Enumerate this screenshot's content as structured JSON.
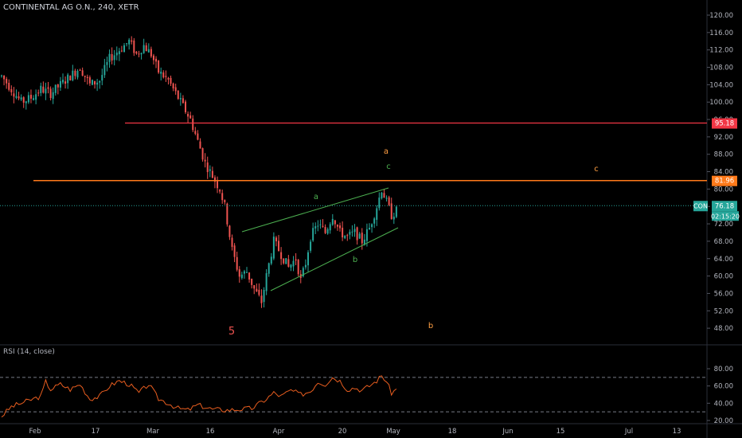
{
  "title": "CONTINENTAL AG O.N., 240, XETR",
  "rsi": {
    "label": "RSI (14, close)",
    "ticks": [
      "80.00",
      "60.00",
      "40.00",
      "20.00"
    ]
  },
  "colors": {
    "up": "#26a69a",
    "down": "#ef5350",
    "level_red": "#f23645",
    "level_orange": "#ff7a1a",
    "wave_green": "#4caf50",
    "wave_orange": "#ff9f43",
    "rsi_line": "#e85d1f"
  },
  "chart_data": {
    "type": "candlestick",
    "price_ticks": [
      "120.00",
      "116.00",
      "112.00",
      "108.00",
      "104.00",
      "100.00",
      "96.00",
      "92.00",
      "88.00",
      "84.00",
      "80.00",
      "76.00",
      "72.00",
      "68.00",
      "64.00",
      "60.00",
      "56.00",
      "52.00",
      "48.00"
    ],
    "x_ticks": [
      "Feb",
      "17",
      "Mar",
      "16",
      "Apr",
      "20",
      "May",
      "18",
      "Jun",
      "15",
      "Jul",
      "13"
    ],
    "levels": [
      {
        "value": 95.18,
        "label": "95.18",
        "color": "#f23645"
      },
      {
        "value": 81.96,
        "label": "81.96",
        "color": "#ff7a1a"
      }
    ],
    "last_price": {
      "symbol": "CON",
      "value": 76.18,
      "label": "76.18",
      "countdown": "02:15:20"
    },
    "wave_labels": [
      {
        "text": "5",
        "color": "#ef5350"
      },
      {
        "text": "a",
        "color": "#4caf50"
      },
      {
        "text": "b",
        "color": "#4caf50"
      },
      {
        "text": "c",
        "color": "#4caf50"
      },
      {
        "text": "a",
        "color": "#ff9f43"
      },
      {
        "text": "b",
        "color": "#ff9f43"
      },
      {
        "text": "c",
        "color": "#ff9f43"
      }
    ],
    "anchors": [
      [
        0,
        106
      ],
      [
        4,
        103
      ],
      [
        8,
        100
      ],
      [
        12,
        101
      ],
      [
        16,
        103
      ],
      [
        20,
        102
      ],
      [
        24,
        104
      ],
      [
        28,
        106
      ],
      [
        32,
        108
      ],
      [
        36,
        104
      ],
      [
        40,
        105
      ],
      [
        44,
        110
      ],
      [
        48,
        112
      ],
      [
        52,
        114
      ],
      [
        55,
        111
      ],
      [
        58,
        113
      ],
      [
        61,
        111
      ],
      [
        64,
        107
      ],
      [
        68,
        105
      ],
      [
        72,
        101
      ],
      [
        75,
        98
      ],
      [
        77,
        96
      ],
      [
        80,
        91
      ],
      [
        83,
        86
      ],
      [
        86,
        83
      ],
      [
        89,
        80
      ],
      [
        91,
        76
      ],
      [
        94,
        66
      ],
      [
        97,
        60
      ],
      [
        100,
        61
      ],
      [
        103,
        57
      ],
      [
        106,
        54
      ],
      [
        108,
        60
      ],
      [
        111,
        68
      ],
      [
        114,
        65
      ],
      [
        117,
        62
      ],
      [
        120,
        64
      ],
      [
        122,
        59
      ],
      [
        124,
        63
      ],
      [
        126,
        69
      ],
      [
        129,
        72
      ],
      [
        132,
        70
      ],
      [
        135,
        74
      ],
      [
        138,
        70
      ],
      [
        141,
        69
      ],
      [
        144,
        70
      ],
      [
        147,
        68
      ],
      [
        150,
        71
      ],
      [
        153,
        76
      ],
      [
        155,
        80
      ],
      [
        157,
        77
      ],
      [
        159,
        74
      ],
      [
        161,
        75
      ]
    ],
    "rsi_anchors": [
      [
        0,
        25
      ],
      [
        4,
        36
      ],
      [
        8,
        40
      ],
      [
        12,
        44
      ],
      [
        16,
        48
      ],
      [
        18,
        65
      ],
      [
        20,
        56
      ],
      [
        24,
        62
      ],
      [
        28,
        56
      ],
      [
        32,
        62
      ],
      [
        36,
        45
      ],
      [
        40,
        48
      ],
      [
        44,
        60
      ],
      [
        48,
        66
      ],
      [
        52,
        62
      ],
      [
        56,
        52
      ],
      [
        60,
        62
      ],
      [
        64,
        45
      ],
      [
        68,
        40
      ],
      [
        72,
        34
      ],
      [
        76,
        32
      ],
      [
        80,
        38
      ],
      [
        86,
        33
      ],
      [
        92,
        32
      ],
      [
        97,
        33
      ],
      [
        102,
        34
      ],
      [
        108,
        45
      ],
      [
        111,
        52
      ],
      [
        114,
        48
      ],
      [
        118,
        55
      ],
      [
        122,
        50
      ],
      [
        126,
        54
      ],
      [
        129,
        65
      ],
      [
        132,
        62
      ],
      [
        135,
        70
      ],
      [
        138,
        66
      ],
      [
        141,
        56
      ],
      [
        144,
        58
      ],
      [
        147,
        55
      ],
      [
        150,
        60
      ],
      [
        153,
        66
      ],
      [
        155,
        72
      ],
      [
        157,
        65
      ],
      [
        159,
        52
      ],
      [
        161,
        56
      ]
    ]
  }
}
